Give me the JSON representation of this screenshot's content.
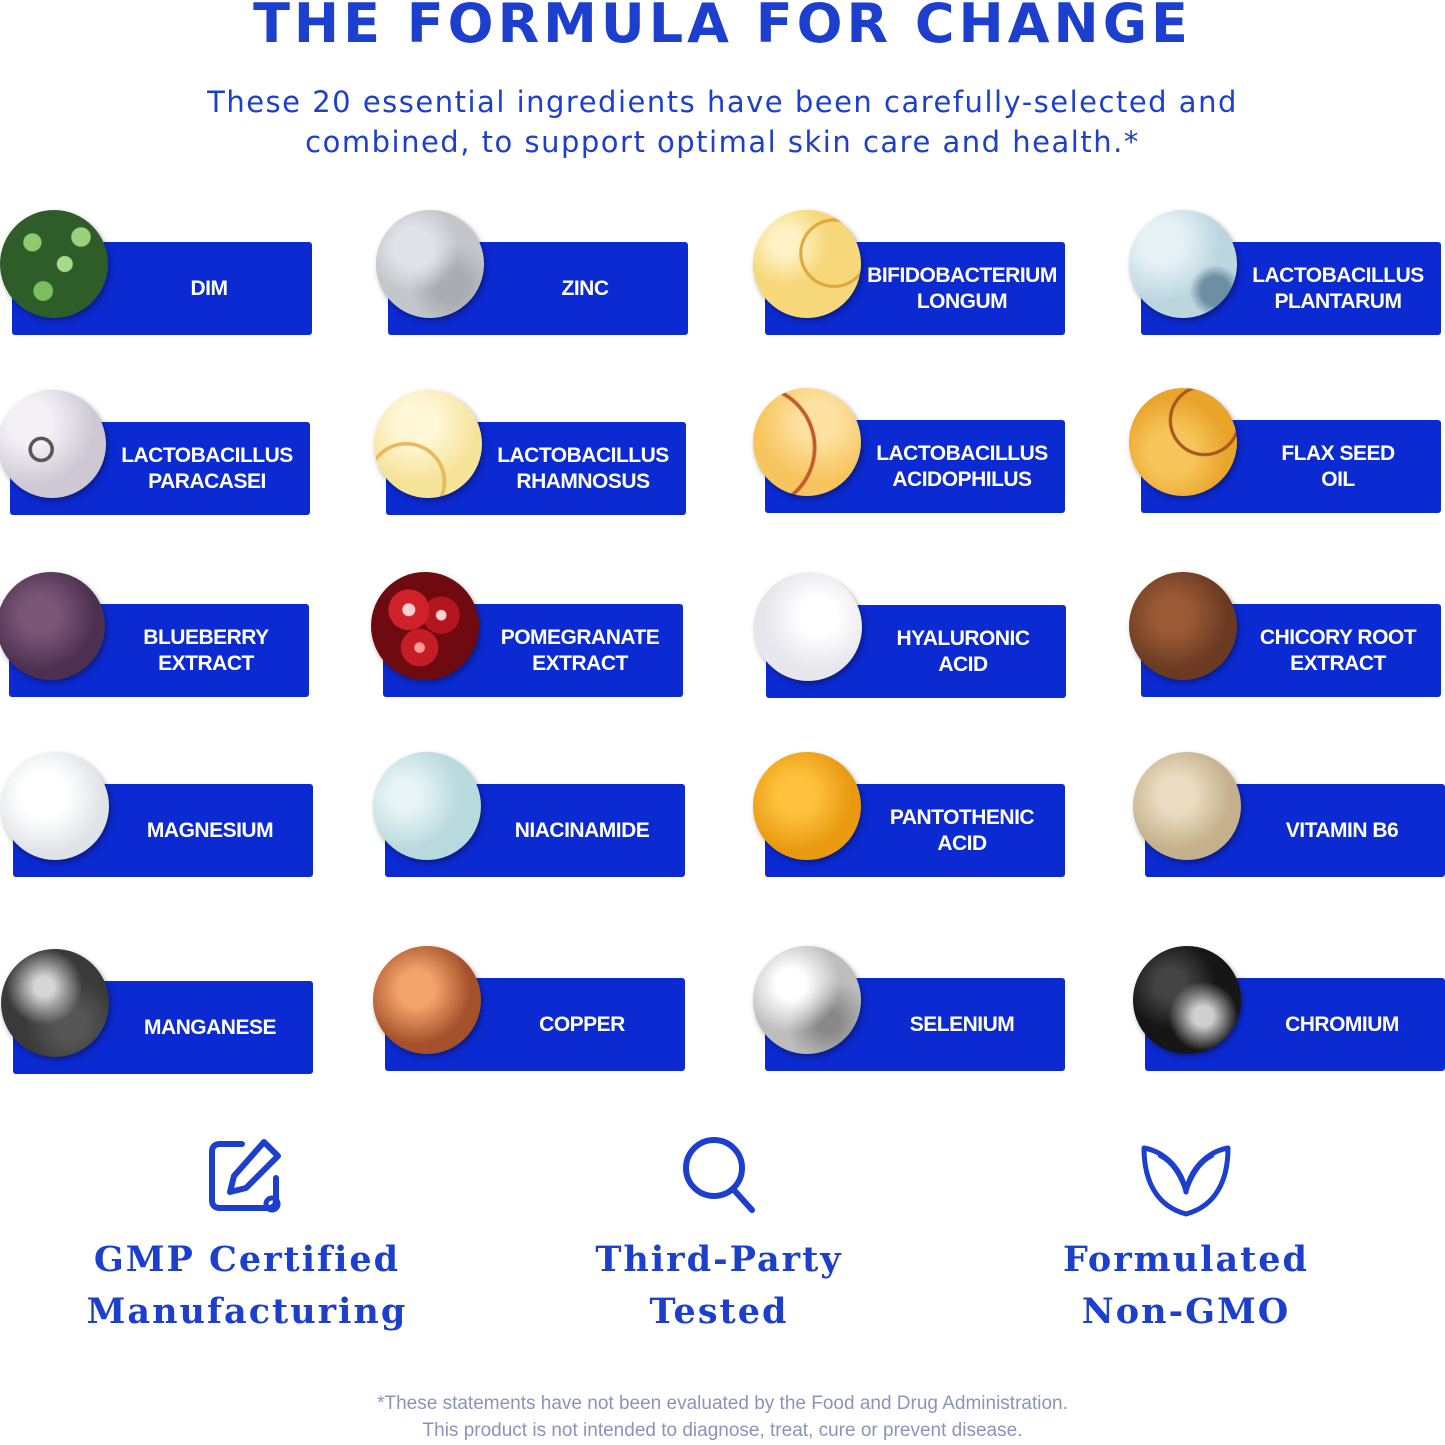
{
  "header": {
    "title": "THE FORMULA FOR CHANGE",
    "subtitle_line1": "These 20 essential ingredients have been carefully-selected and",
    "subtitle_line2": "combined, to support optimal skin care and health.*"
  },
  "ingredients": [
    {
      "label": "DIM",
      "thumb": "green-sprouts"
    },
    {
      "label": "ZINC",
      "thumb": "gray-powder"
    },
    {
      "label": "BIFIDOBACTERIUM\nLONGUM",
      "thumb": "yellow-bubbles"
    },
    {
      "label": "LACTOBACILLUS\nPLANTARUM",
      "thumb": "light-blue-droplet"
    },
    {
      "label": "LACTOBACILLUS\nPARACASEI",
      "thumb": "lavender-bubbles"
    },
    {
      "label": "LACTOBACILLUS\nRHAMNOSUS",
      "thumb": "pale-yellow-bubbles"
    },
    {
      "label": "LACTOBACILLUS\nACIDOPHILUS",
      "thumb": "golden-oil"
    },
    {
      "label": "FLAX SEED\nOIL",
      "thumb": "amber-oil"
    },
    {
      "label": "BLUEBERRY\nEXTRACT",
      "thumb": "purple-powder"
    },
    {
      "label": "POMEGRANATE\nEXTRACT",
      "thumb": "red-seeds"
    },
    {
      "label": "HYALURONIC\nACID",
      "thumb": "clear-gel"
    },
    {
      "label": "CHICORY ROOT\nEXTRACT",
      "thumb": "brown-powder"
    },
    {
      "label": "MAGNESIUM",
      "thumb": "white-powder"
    },
    {
      "label": "NIACINAMIDE",
      "thumb": "aqua-droplets"
    },
    {
      "label": "PANTOTHENIC\nACID",
      "thumb": "orange-powder"
    },
    {
      "label": "VITAMIN B6",
      "thumb": "beige-powder"
    },
    {
      "label": "MANGANESE",
      "thumb": "dark-ore"
    },
    {
      "label": "COPPER",
      "thumb": "copper-glitter"
    },
    {
      "label": "SELENIUM",
      "thumb": "silver-foil"
    },
    {
      "label": "CHROMIUM",
      "thumb": "black-ore"
    }
  ],
  "badges": [
    {
      "icon": "edit-note-icon",
      "text": "GMP Certified\nManufacturing"
    },
    {
      "icon": "magnifier-icon",
      "text": "Third-Party\nTested"
    },
    {
      "icon": "leaf-icon",
      "text": "Formulated\nNon-GMO"
    }
  ],
  "footer": {
    "disclaimer_line1": "*These statements have not been evaluated by the Food and Drug Administration.",
    "disclaimer_line2": "This product is not intended to diagnose, treat, cure or prevent disease."
  },
  "colors": {
    "brand_blue": "#0c2ad1",
    "heading_blue": "#1c3fce"
  }
}
